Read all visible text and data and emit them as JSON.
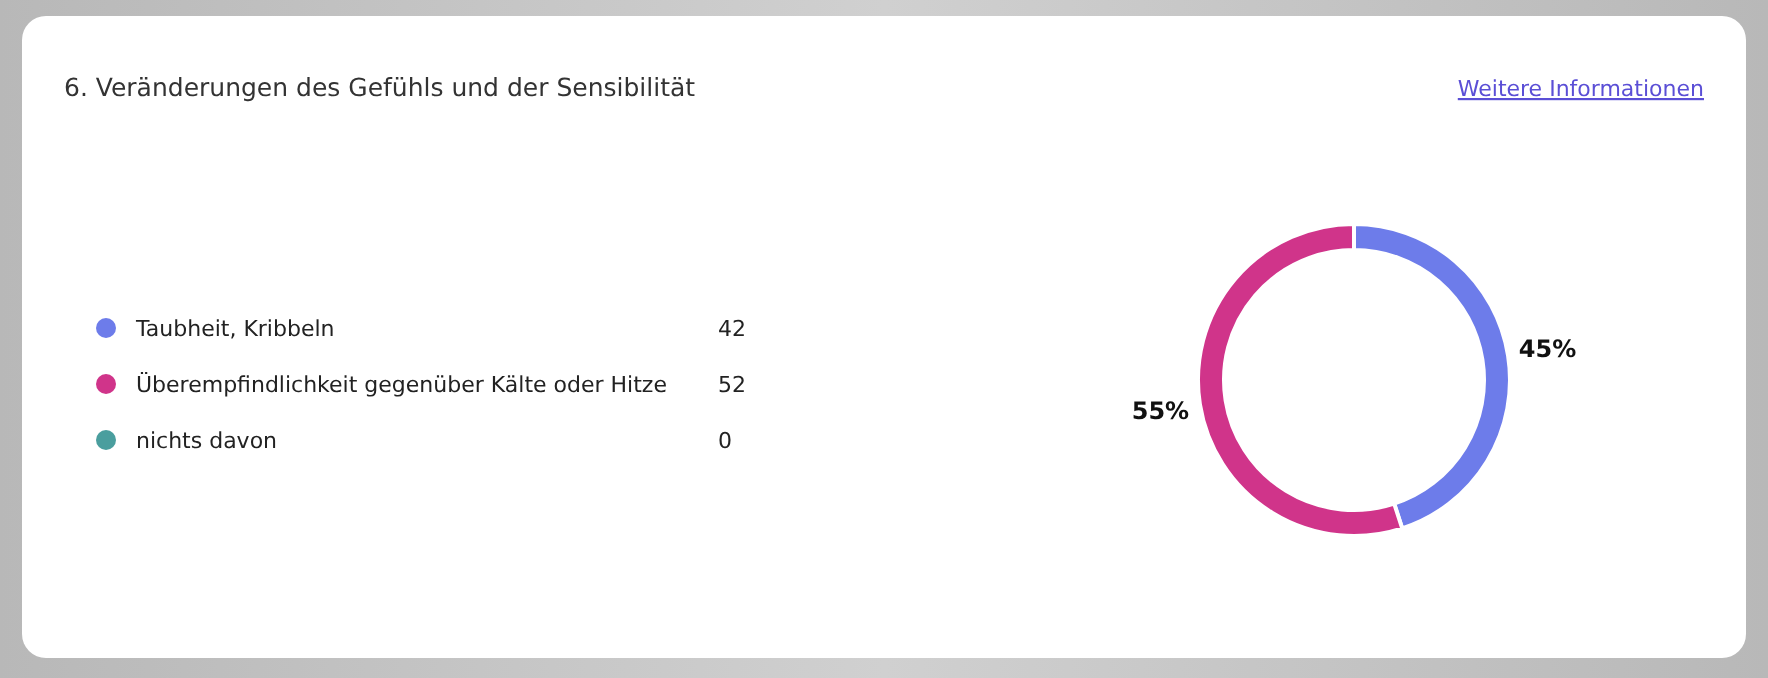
{
  "chart_data": {
    "type": "donut",
    "title": "6. Veränderungen des Gefühls und der Sensibilität",
    "categories": [
      "Taubheit, Kribbeln",
      "Überempfindlichkeit gegenüber Kälte oder Hitze",
      "nichts davon"
    ],
    "values": [
      45,
      55,
      0
    ],
    "colors": [
      "#6d7cea",
      "#d0348a",
      "#4a9e9e"
    ],
    "value_labels": [
      "45%",
      "55%",
      null
    ],
    "legend": "left",
    "annotations": [
      "Weitere Informationen",
      {
        "text": "42",
        "x": "Taubheit, Kribbeln"
      },
      {
        "text": "52",
        "x": "Überempfindlichkeit gegenüber Kälte oder Hitze"
      },
      {
        "text": "0",
        "x": "nichts davon"
      }
    ]
  }
}
